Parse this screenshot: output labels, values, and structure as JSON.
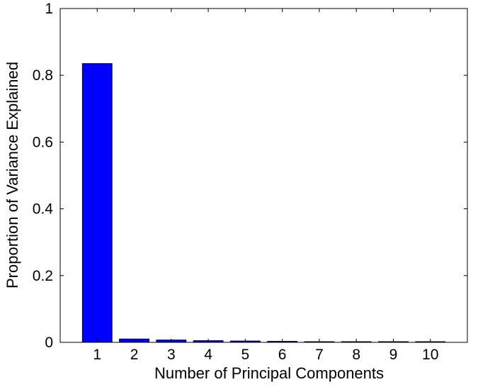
{
  "chart_data": {
    "type": "bar",
    "title": "",
    "xlabel": "Number of Principal Components",
    "ylabel": "Proportion of Variance Explained",
    "categories": [
      "1",
      "2",
      "3",
      "4",
      "5",
      "6",
      "7",
      "8",
      "9",
      "10"
    ],
    "values": [
      0.835,
      0.01,
      0.007,
      0.005,
      0.004,
      0.003,
      0.002,
      0.002,
      0.002,
      0.002
    ],
    "xlim": [
      0,
      11
    ],
    "ylim": [
      0,
      1
    ],
    "yticks": [
      "0",
      "0.2",
      "0.4",
      "0.6",
      "0.8",
      "1"
    ],
    "grid": false,
    "legend": "none",
    "bar_color": "#0000ff",
    "edge_color": "#000000"
  }
}
